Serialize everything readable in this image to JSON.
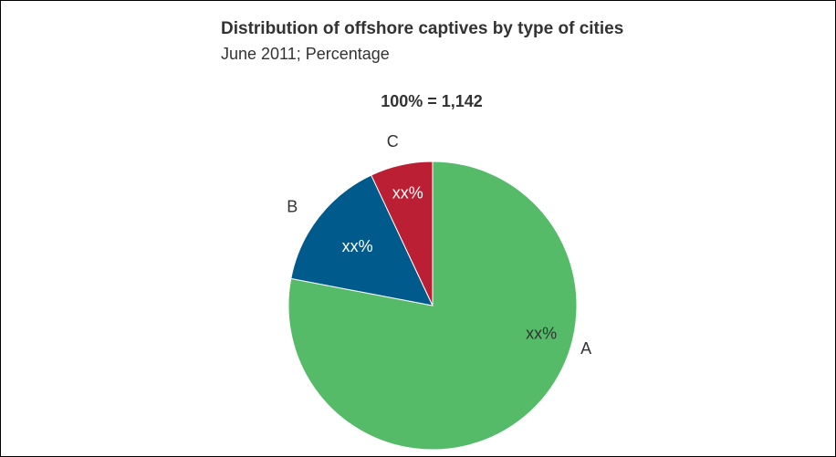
{
  "chart_data": {
    "type": "pie",
    "title": "Distribution of offshore captives by type of cities",
    "subtitle": "June 2011; Percentage",
    "total_label": "100% = 1,142",
    "slices": [
      {
        "category": "A",
        "value": 78,
        "value_label": "xx%",
        "color": "#55bb69",
        "label_color": "#333333"
      },
      {
        "category": "B",
        "value": 15,
        "value_label": "xx%",
        "color": "#005a8b",
        "label_color": "#ffffff"
      },
      {
        "category": "C",
        "value": 7,
        "value_label": "xx%",
        "color": "#bb1f33",
        "label_color": "#ffffff"
      }
    ]
  }
}
